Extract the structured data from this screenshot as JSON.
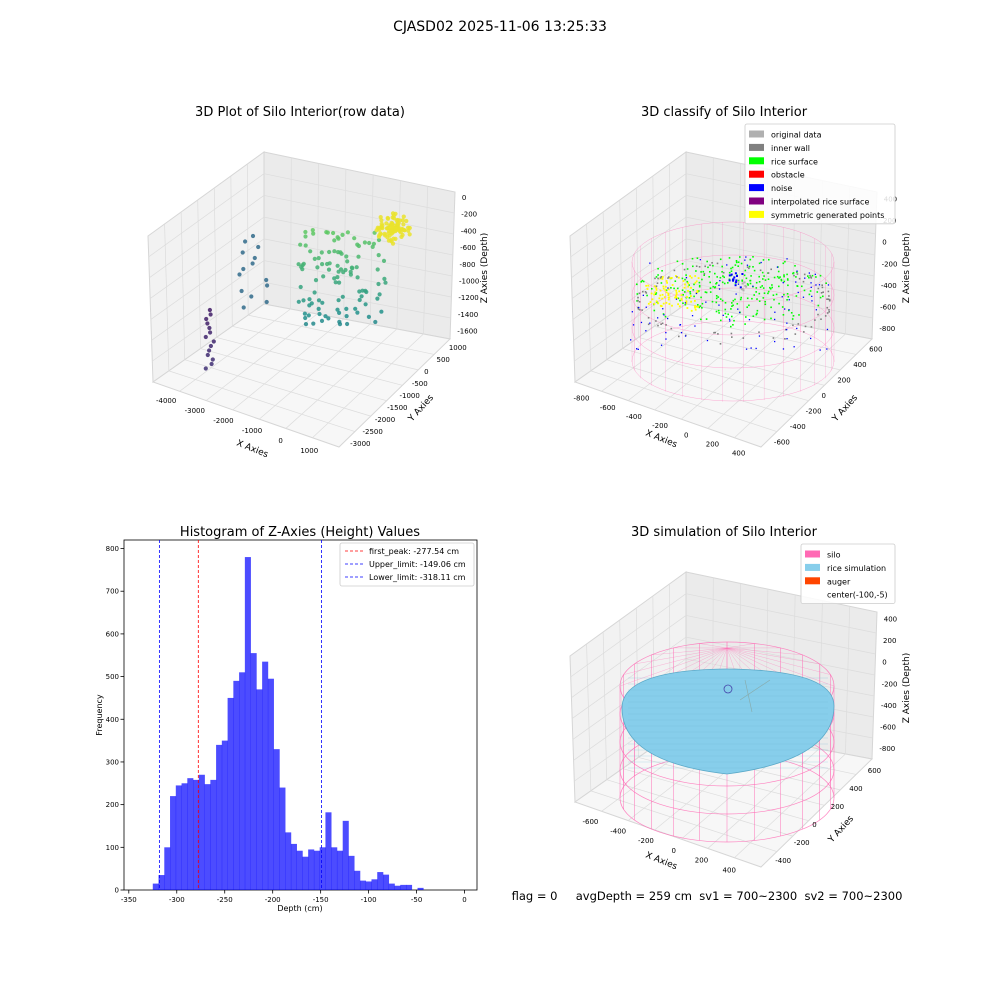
{
  "suptitle": "CJASD02 2025-11-06 13:25:33",
  "status_line": "flag = 0     avgDepth = 259 cm  sv1 = 700~2300  sv2 = 700~2300",
  "colors": {
    "raw_point_low": "#440154",
    "raw_point_mid": "#21918c",
    "raw_point_high": "#fde725",
    "original_data": "#b0b0b0",
    "inner_wall": "#808080",
    "rice_surface": "#00ff00",
    "obstacle": "#ff0000",
    "noise": "#0000ff",
    "interpolated_rice_surface": "#800080",
    "symmetric_generated_points": "#ffff00",
    "silo": "#ff69b4",
    "rice_simulation": "#87ceeb",
    "auger": "#ff4500",
    "hist_bar": "#0000ff"
  },
  "chart_data": [
    {
      "type": "scatter",
      "subtype": "3d",
      "title": "3D Plot of Silo Interior(row data)",
      "xlabel": "X Axies",
      "ylabel": "Y Axies",
      "zlabel": "Z Axies (Depth)",
      "x_ticks": [
        "-4000",
        "-3000",
        "-2000",
        "-1000",
        "0",
        "1000"
      ],
      "y_ticks": [
        "1000",
        "500",
        "0",
        "-500",
        "-1000",
        "-1500",
        "-2000",
        "-2500",
        "-3000"
      ],
      "z_ticks": [
        "0",
        "-200",
        "-400",
        "-600",
        "-800",
        "-1000",
        "-1200",
        "-1400",
        "-1600"
      ],
      "colormap": "viridis"
    },
    {
      "type": "scatter",
      "subtype": "3d",
      "title": "3D classify of Silo Interior",
      "xlabel": "X Axies",
      "ylabel": "Y Axies",
      "zlabel": "Z Axies (Depth)",
      "x_ticks": [
        "-800",
        "-600",
        "-400",
        "-200",
        "0",
        "200",
        "400"
      ],
      "y_ticks": [
        "600",
        "400",
        "200",
        "0",
        "-200",
        "-400",
        "-600"
      ],
      "z_ticks": [
        "400",
        "200",
        "0",
        "-200",
        "-400",
        "-600",
        "-800"
      ],
      "legend": [
        "original data",
        "inner wall",
        "rice surface",
        "obstacle",
        "noise",
        "interpolated rice surface",
        "symmetric generated points"
      ],
      "legend_position": "top-right"
    },
    {
      "type": "bar",
      "subtype": "histogram",
      "title": "Histogram of Z-Axies (Height) Values",
      "xlabel": "Depth (cm)",
      "ylabel": "Frequency",
      "xlim": [
        -355,
        13
      ],
      "ylim": [
        0,
        820
      ],
      "x_ticks": [
        -350,
        -300,
        -250,
        -200,
        -150,
        -100,
        -50,
        0
      ],
      "y_ticks": [
        0,
        100,
        200,
        300,
        400,
        500,
        600,
        700,
        800
      ],
      "bin_start": -325,
      "bin_width": 6,
      "values": [
        15,
        35,
        100,
        220,
        245,
        250,
        262,
        258,
        270,
        248,
        258,
        340,
        350,
        450,
        490,
        510,
        780,
        555,
        470,
        535,
        495,
        330,
        240,
        135,
        108,
        92,
        78,
        95,
        92,
        100,
        182,
        100,
        92,
        162,
        80,
        45,
        22,
        20,
        25,
        42,
        36,
        15,
        10,
        12,
        12,
        0,
        5
      ],
      "lines": [
        {
          "label": "first_peak: -277.54 cm",
          "x": -277.54,
          "color": "#ff0000"
        },
        {
          "label": "Upper_limit: -149.06 cm",
          "x": -149.06,
          "color": "#0000ff"
        },
        {
          "label": "Lower_limit: -318.11 cm",
          "x": -318.11,
          "color": "#0000ff"
        }
      ],
      "legend_position": "top-right"
    },
    {
      "type": "scatter",
      "subtype": "3d",
      "title": "3D simulation of Silo Interior",
      "xlabel": "X Axies",
      "ylabel": "Y Axies",
      "zlabel": "Z Axies (Depth)",
      "x_ticks": [
        "-600",
        "-400",
        "-200",
        "0",
        "200",
        "400"
      ],
      "y_ticks": [
        "600",
        "400",
        "200",
        "0",
        "-200",
        "-400"
      ],
      "z_ticks": [
        "400",
        "200",
        "0",
        "-200",
        "-400",
        "-600",
        "-800"
      ],
      "legend": [
        "silo",
        "rice simulation",
        "auger",
        "center(-100,-5)"
      ],
      "legend_position": "top-right"
    }
  ]
}
